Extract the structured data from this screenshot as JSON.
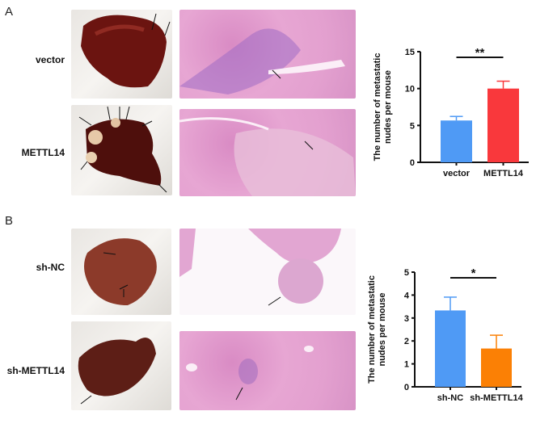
{
  "panels": [
    {
      "letter": "A",
      "rows": [
        "vector",
        "METTL14"
      ]
    },
    {
      "letter": "B",
      "rows": [
        "sh-NC",
        "sh-METTL14"
      ]
    }
  ],
  "chart_data": [
    {
      "type": "bar",
      "ylabel": "The number of metastatic nudes per mouse",
      "ylabel_lines": [
        "The number of metastatic",
        "nudes per mouse"
      ],
      "categories": [
        "vector",
        "METTL14"
      ],
      "values": [
        5.67,
        10.0
      ],
      "errors": [
        0.55,
        1.0
      ],
      "colors": [
        "#4f9af5",
        "#f9383c"
      ],
      "ylim": [
        0,
        15
      ],
      "yticks": [
        0,
        5,
        10,
        15
      ],
      "significance": "**",
      "grid": false
    },
    {
      "type": "bar",
      "ylabel": "The number of metastatic nudes per mouse",
      "ylabel_lines": [
        "The number of metastatic",
        "nudes per mouse"
      ],
      "categories": [
        "sh-NC",
        "sh-METTL14"
      ],
      "values": [
        3.33,
        1.67
      ],
      "errors": [
        0.58,
        0.58
      ],
      "colors": [
        "#4f9af5",
        "#fb8005"
      ],
      "ylim": [
        0,
        5
      ],
      "yticks": [
        0,
        1,
        2,
        3,
        4,
        5
      ],
      "significance": "*",
      "grid": false
    }
  ]
}
